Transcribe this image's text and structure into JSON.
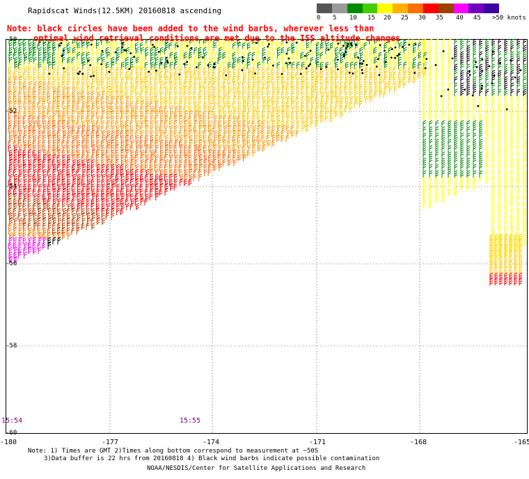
{
  "title": "Rapidscat Winds(12.5KM) 20160818 ascending",
  "note": {
    "line1": "Note: black circles have been added to the wind barbs, wherever less than",
    "line2": "optimal wind retrieval conditions are met due to the ISS altitude changes"
  },
  "legend": {
    "labels": [
      "0",
      "5",
      "10",
      "15",
      "20",
      "25",
      "30",
      "35",
      "40",
      "45",
      ">50 knots"
    ],
    "colors": [
      "#555555",
      "#999999",
      "#008a00",
      "#44cc00",
      "#ffff00",
      "#ffb000",
      "#ff7000",
      "#ff0000",
      "#a04000",
      "#ff00ff",
      "#7000c0",
      "#4000a0"
    ]
  },
  "lat_labels": [
    "-50",
    "-52",
    "-54",
    "-56",
    "-58",
    "-60"
  ],
  "lon_labels": [
    "-180",
    "-177",
    "-174",
    "-171",
    "-168",
    "-165"
  ],
  "time_labels": [
    "15:54",
    "15:55"
  ],
  "footer": {
    "line1": "Note: 1) Times are GMT 2)Times along bottom correspond to measurement at ~50S",
    "line2": "3)Data buffer is 22 hrs from 20160818 4) Black wind barbs indicate possible contamination",
    "line3": "NOAA/NESDIS/Center for Satellite Applications and Research"
  }
}
